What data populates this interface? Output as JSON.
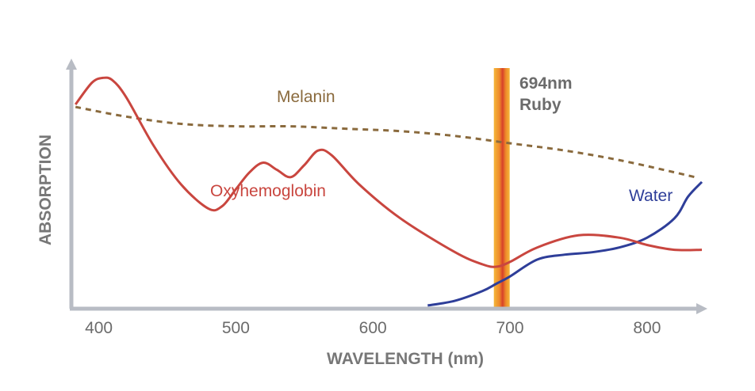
{
  "chart_data": {
    "type": "line",
    "xlabel": "WAVELENGTH (nm)",
    "ylabel": "ABSORPTION",
    "x_ticks": [
      "400",
      "500",
      "600",
      "700",
      "800"
    ],
    "xlim": [
      380,
      840
    ],
    "ylim": [
      0,
      100
    ],
    "grid": false,
    "legend": "none (series labeled inline)",
    "series": [
      {
        "name": "Oxyhemoglobin",
        "color": "#c9463f",
        "style": "solid",
        "x": [
          383,
          395,
          403,
          410,
          420,
          440,
          460,
          480,
          490,
          500,
          510,
          520,
          530,
          540,
          550,
          560,
          570,
          590,
          620,
          660,
          680,
          690,
          700,
          720,
          750,
          780,
          800,
          820,
          840
        ],
        "y": [
          83,
          92,
          94,
          93,
          86,
          66,
          50,
          40,
          41,
          48,
          55,
          59,
          56,
          53,
          58,
          64,
          62,
          50,
          36,
          22,
          17,
          16,
          18,
          24,
          29,
          28,
          25,
          23,
          23
        ]
      },
      {
        "name": "Melanin",
        "color": "#8a6a3d",
        "style": "dashed",
        "x": [
          383,
          420,
          460,
          500,
          540,
          580,
          620,
          660,
          700,
          740,
          780,
          820,
          835
        ],
        "y": [
          82,
          78,
          75,
          74,
          74,
          73,
          72,
          70,
          67,
          64,
          60,
          55,
          53
        ]
      },
      {
        "name": "Water",
        "color": "#2e3e99",
        "style": "solid",
        "x": [
          640,
          660,
          680,
          690,
          700,
          720,
          740,
          760,
          780,
          800,
          820,
          830,
          840
        ],
        "y": [
          0,
          2,
          6,
          9,
          12,
          19,
          21,
          22,
          24,
          28,
          36,
          45,
          51
        ]
      }
    ],
    "annotations": [
      {
        "type": "vertical_band",
        "x": 694,
        "label_line1": "694nm",
        "label_line2": "Ruby"
      }
    ]
  }
}
